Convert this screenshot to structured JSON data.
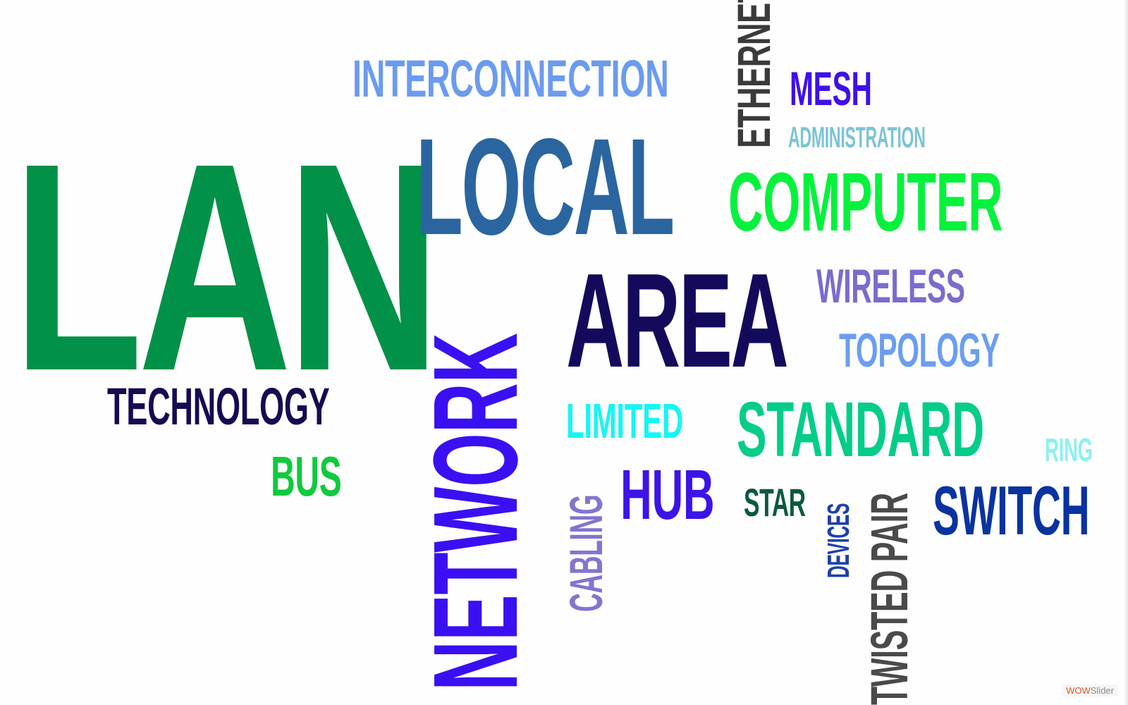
{
  "words": {
    "lan": "LAN",
    "interconnection": "INTERCONNECTION",
    "local": "LOCAL",
    "ethernet": "ETHERNET",
    "mesh": "MESH",
    "administration": "ADMINISTRATION",
    "computer": "COMPUTER",
    "network": "NETWORK",
    "area": "AREA",
    "wireless": "WIRELESS",
    "topology": "TOPOLOGY",
    "technology": "TECHNOLOGY",
    "bus": "BUS",
    "limited": "LIMITED",
    "standard": "STANDARD",
    "ring": "RING",
    "cabling": "CABLING",
    "hub": "HUB",
    "star": "STAR",
    "devices": "DEVICES",
    "twisted_pair": "TWISTED PAIR",
    "switch": "SWITCH"
  },
  "colors": {
    "lan": "#029148",
    "interconnection": "#6b9bf0",
    "local": "#2a65a0",
    "ethernet": "#3a3a3a",
    "mesh": "#3f10e8",
    "administration": "#7cc4d4",
    "computer": "#05f23c",
    "network": "#3a10f2",
    "area": "#140a5c",
    "wireless": "#7a6ccc",
    "topology": "#6b9df0",
    "technology": "#150b52",
    "bus": "#0fca3c",
    "limited": "#15f5f5",
    "standard": "#04cd8a",
    "ring": "#8ef0f0",
    "cabling": "#8474d0",
    "hub": "#3d13e8",
    "star": "#0a5a3c",
    "devices": "#1d3fb0",
    "twisted_pair": "#4a4a4a",
    "switch": "#0a33a0"
  },
  "watermark": {
    "part1": "WOW",
    "part2": "Slider"
  }
}
